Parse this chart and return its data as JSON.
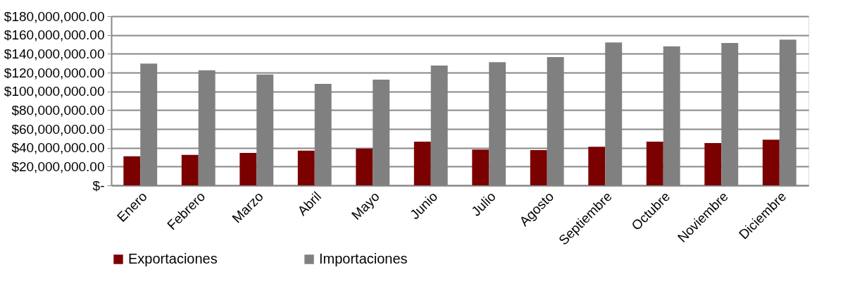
{
  "chart_data": {
    "type": "bar",
    "categories": [
      "Enero",
      "Febrero",
      "Marzo",
      "Abril",
      "Mayo",
      "Junio",
      "Julio",
      "Agosto",
      "Septiembre",
      "Octubre",
      "Noviembre",
      "Diciembre"
    ],
    "series": [
      {
        "name": "Exportaciones",
        "color": "#7b0000",
        "values": [
          31000000,
          32500000,
          34500000,
          37000000,
          39000000,
          46500000,
          38000000,
          37500000,
          41000000,
          46500000,
          45000000,
          48500000
        ]
      },
      {
        "name": "Importaciones",
        "color": "#808080",
        "values": [
          129500000,
          122500000,
          118000000,
          108000000,
          112500000,
          127500000,
          131000000,
          136500000,
          152000000,
          148000000,
          151500000,
          155000000
        ]
      }
    ],
    "ylim": [
      0,
      180000000
    ],
    "yticks": [
      {
        "value": 0,
        "label": "$-"
      },
      {
        "value": 20000000,
        "label": "$20,000,000.00"
      },
      {
        "value": 40000000,
        "label": "$40,000,000.00"
      },
      {
        "value": 60000000,
        "label": "$60,000,000.00"
      },
      {
        "value": 80000000,
        "label": "$80,000,000.00"
      },
      {
        "value": 100000000,
        "label": "$100,000,000.00"
      },
      {
        "value": 120000000,
        "label": "$120,000,000.00"
      },
      {
        "value": 140000000,
        "label": "$140,000,000.00"
      },
      {
        "value": 160000000,
        "label": "$160,000,000.00"
      },
      {
        "value": 180000000,
        "label": "$180,000,000.00"
      }
    ],
    "grid": "y",
    "legend": "bottom"
  }
}
